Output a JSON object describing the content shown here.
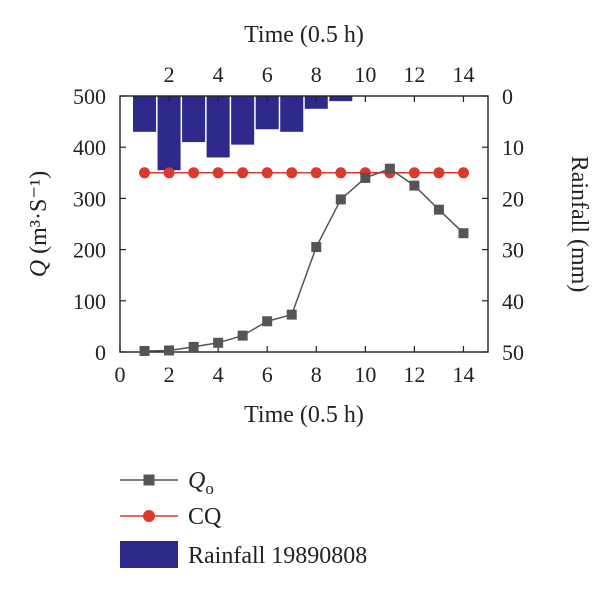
{
  "chart_data": {
    "type": "line",
    "x_label_bottom": "Time (0.5 h)",
    "x_label_top": "Time (0.5 h)",
    "y_label_left_symbol": "Q",
    "y_label_left_rest": "(m³·S⁻¹)",
    "y_label_right": "Rainfall (mm)",
    "xlim": [
      0,
      15
    ],
    "ylim_left": [
      0,
      500
    ],
    "ylim_right_inverted": [
      0,
      50
    ],
    "x_ticks_bottom": [
      "0",
      "2",
      "4",
      "6",
      "8",
      "10",
      "12",
      "14"
    ],
    "x_ticks_top": [
      "2",
      "4",
      "6",
      "8",
      "10",
      "12",
      "14"
    ],
    "y_ticks_left": [
      "0",
      "100",
      "200",
      "300",
      "400",
      "500"
    ],
    "y_ticks_right": [
      "0",
      "10",
      "20",
      "30",
      "40",
      "50"
    ],
    "series": [
      {
        "name_main": "Q",
        "name_sub": "o",
        "type": "line",
        "marker": "square",
        "color": "#555555",
        "x": [
          1,
          2,
          3,
          4,
          5,
          6,
          7,
          8,
          9,
          10,
          11,
          12,
          13,
          14
        ],
        "y": [
          2,
          3,
          10,
          18,
          32,
          60,
          73,
          205,
          298,
          340,
          358,
          325,
          278,
          232
        ]
      },
      {
        "name": "CQ",
        "type": "line",
        "marker": "circle",
        "color": "#d93a2b",
        "x": [
          1,
          2,
          3,
          4,
          5,
          6,
          7,
          8,
          9,
          10,
          11,
          12,
          13,
          14
        ],
        "y": [
          350,
          350,
          350,
          350,
          350,
          350,
          350,
          350,
          350,
          350,
          350,
          350,
          350,
          350
        ]
      },
      {
        "name": "Rainfall 19890808",
        "type": "bar",
        "axis": "right-inverted",
        "color": "#2e2a8c",
        "x": [
          1,
          2,
          3,
          4,
          5,
          6,
          7,
          8,
          9
        ],
        "y": [
          7,
          14.5,
          9,
          12,
          9.5,
          6.5,
          7,
          2.5,
          1
        ]
      }
    ],
    "legend_position": "below"
  }
}
